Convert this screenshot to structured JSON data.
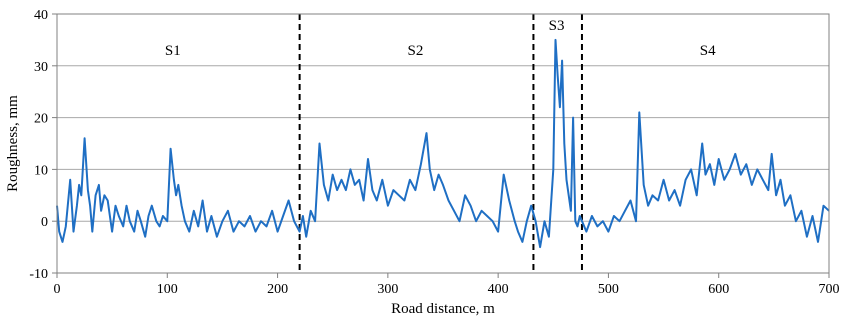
{
  "chart_data": {
    "type": "line",
    "title": "",
    "xlabel": "Road distance, m",
    "ylabel": "Roughness, mm",
    "xlim": [
      0,
      700
    ],
    "ylim": [
      -10,
      40
    ],
    "x_ticks": [
      0,
      100,
      200,
      300,
      400,
      500,
      600,
      700
    ],
    "y_ticks": [
      -10,
      0,
      10,
      20,
      30,
      40
    ],
    "grid": "horizontal",
    "line_color": "#1f6fc4",
    "sections": [
      {
        "label": "S1",
        "x": 105
      },
      {
        "label": "S2",
        "x": 325
      },
      {
        "label": "S3",
        "x": 453
      },
      {
        "label": "S4",
        "x": 590
      }
    ],
    "boundaries": [
      220,
      432,
      476
    ],
    "series": [
      {
        "x": [
          0,
          2,
          5,
          8,
          12,
          15,
          18,
          20,
          22,
          25,
          28,
          30,
          32,
          35,
          38,
          40,
          43,
          46,
          50,
          53,
          56,
          60,
          63,
          66,
          70,
          73,
          76,
          80,
          83,
          86,
          90,
          93,
          96,
          100,
          103,
          106,
          108,
          110,
          113,
          116,
          120,
          124,
          128,
          132,
          136,
          140,
          145,
          150,
          155,
          160,
          165,
          170,
          175,
          180,
          185,
          190,
          195,
          200,
          205,
          210,
          215,
          220,
          223,
          226,
          230,
          234,
          238,
          242,
          246,
          250,
          254,
          258,
          262,
          266,
          270,
          274,
          278,
          282,
          286,
          290,
          295,
          300,
          305,
          310,
          315,
          320,
          325,
          330,
          335,
          338,
          342,
          346,
          350,
          355,
          360,
          365,
          370,
          375,
          380,
          385,
          390,
          395,
          400,
          405,
          410,
          415,
          418,
          422,
          426,
          430,
          434,
          438,
          442,
          446,
          450,
          452,
          454,
          456,
          458,
          460,
          462,
          464,
          466,
          468,
          470,
          472,
          474,
          476,
          480,
          485,
          490,
          495,
          500,
          505,
          510,
          515,
          520,
          525,
          528,
          532,
          536,
          540,
          545,
          550,
          555,
          560,
          565,
          570,
          575,
          580,
          585,
          588,
          592,
          596,
          600,
          605,
          610,
          615,
          620,
          625,
          630,
          635,
          640,
          645,
          648,
          652,
          656,
          660,
          665,
          670,
          675,
          680,
          685,
          690,
          695,
          700
        ],
        "values": [
          3,
          -2,
          -4,
          -1,
          8,
          -2,
          3,
          7,
          5,
          16,
          6,
          3,
          -2,
          5,
          7,
          2,
          5,
          4,
          -2,
          3,
          1,
          -1,
          3,
          0,
          -2,
          2,
          0,
          -3,
          1,
          3,
          0,
          -1,
          1,
          0,
          14,
          8,
          5,
          7,
          3,
          0,
          -2,
          2,
          -1,
          4,
          -2,
          1,
          -3,
          0,
          2,
          -2,
          0,
          -1,
          1,
          -2,
          0,
          -1,
          2,
          -2,
          1,
          4,
          0,
          -2,
          1,
          -3,
          2,
          0,
          15,
          7,
          4,
          9,
          6,
          8,
          6,
          10,
          7,
          8,
          4,
          12,
          6,
          4,
          8,
          3,
          6,
          5,
          4,
          8,
          6,
          11,
          17,
          10,
          6,
          9,
          7,
          4,
          2,
          0,
          5,
          3,
          0,
          2,
          1,
          0,
          -2,
          9,
          4,
          0,
          -2,
          -4,
          0,
          3,
          0,
          -5,
          0,
          -3,
          10,
          35,
          28,
          22,
          31,
          15,
          8,
          5,
          2,
          20,
          0,
          -1,
          1,
          0,
          -2,
          1,
          -1,
          0,
          -2,
          1,
          0,
          2,
          4,
          0,
          21,
          7,
          3,
          5,
          4,
          8,
          4,
          6,
          3,
          8,
          10,
          5,
          15,
          9,
          11,
          7,
          12,
          8,
          10,
          13,
          9,
          11,
          7,
          10,
          8,
          6,
          13,
          5,
          8,
          3,
          5,
          0,
          2,
          -3,
          1,
          -4,
          3,
          2
        ]
      }
    ]
  }
}
